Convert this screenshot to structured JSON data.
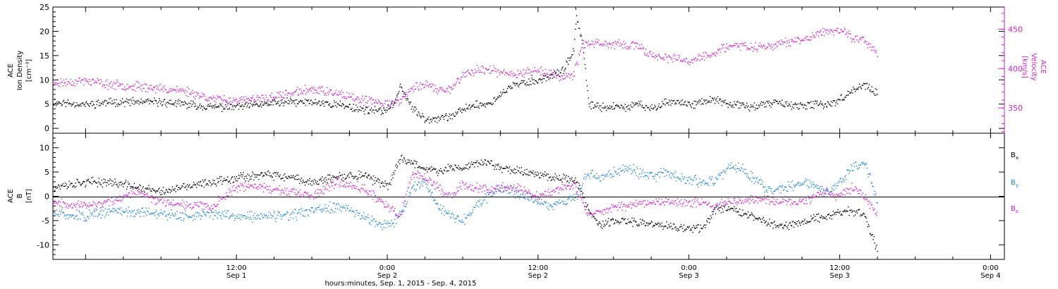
{
  "xaxis": {
    "title": "hours:minutes, Sep.  1, 2015 - Sep.  4, 2015",
    "ticks": [
      {
        "t": 12,
        "time": "12:00",
        "date": "Sep 1"
      },
      {
        "t": 24,
        "time": "0:00",
        "date": "Sep 2"
      },
      {
        "t": 36,
        "time": "12:00",
        "date": "Sep 2"
      },
      {
        "t": 48,
        "time": "0:00",
        "date": "Sep 3"
      },
      {
        "t": 60,
        "time": "12:00",
        "date": "Sep 3"
      },
      {
        "t": 72,
        "time": "0:00",
        "date": "Sep 4"
      }
    ]
  },
  "panel1": {
    "ylabel_left": [
      "ACE",
      "Ion Density",
      "[cm⁻³]"
    ],
    "ylabel_right": [
      "ACE",
      "Velocity",
      "[km/s]"
    ],
    "left_ticks": [
      "0",
      "5",
      "10",
      "15",
      "20",
      "25"
    ],
    "right_ticks": [
      "350",
      "400",
      "450"
    ]
  },
  "panel2": {
    "ylabel_left": [
      "ACE",
      "B",
      "[nT]"
    ],
    "left_ticks": [
      "-10",
      "-5",
      "0",
      "5",
      "10"
    ],
    "legend": [
      {
        "label": "B",
        "sub": "x",
        "color": "#000000"
      },
      {
        "label": "B",
        "sub": "y",
        "color": "#1f86d8"
      },
      {
        "label": "B",
        "sub": "z",
        "color": "#d41fd4"
      }
    ]
  },
  "colors": {
    "density": "#000000",
    "velocity": "#cc22cc",
    "bx": "#000000",
    "by": "#1f86d8",
    "bz": "#d41fd4"
  },
  "chart_data": [
    {
      "type": "scatter",
      "x_unit": "hours since Sep 1 2015 00:00",
      "xlim": [
        -2.6,
        73.1
      ],
      "series": [
        {
          "name": "Ion Density",
          "axis": "left",
          "ylim": [
            -1,
            25
          ],
          "data_range": [
            -2.6,
            63
          ],
          "points": [
            [
              -2.6,
              5.5
            ],
            [
              0,
              5
            ],
            [
              2,
              5.5
            ],
            [
              4,
              5.5
            ],
            [
              6,
              5.5
            ],
            [
              8,
              5
            ],
            [
              10,
              4.5
            ],
            [
              12,
              4.5
            ],
            [
              14,
              5
            ],
            [
              16,
              5.5
            ],
            [
              18,
              5.5
            ],
            [
              20,
              5
            ],
            [
              22,
              4
            ],
            [
              23.5,
              3.5
            ],
            [
              24.5,
              5
            ],
            [
              25,
              9
            ],
            [
              26,
              4
            ],
            [
              27,
              2
            ],
            [
              29,
              2.5
            ],
            [
              30,
              4
            ],
            [
              31,
              5
            ],
            [
              32,
              5
            ],
            [
              33,
              7
            ],
            [
              34,
              9
            ],
            [
              35,
              9.5
            ],
            [
              36,
              10
            ],
            [
              37,
              11
            ],
            [
              38,
              12
            ],
            [
              38.8,
              16
            ],
            [
              39,
              23
            ],
            [
              39.5,
              18
            ],
            [
              40,
              5
            ],
            [
              41,
              4.5
            ],
            [
              43,
              4.5
            ],
            [
              44,
              5
            ],
            [
              45,
              4
            ],
            [
              46,
              5.5
            ],
            [
              47,
              5.5
            ],
            [
              48,
              5
            ],
            [
              49,
              5.5
            ],
            [
              50,
              6
            ],
            [
              51,
              5
            ],
            [
              52,
              5
            ],
            [
              53,
              4.5
            ],
            [
              54,
              5
            ],
            [
              55,
              5.5
            ],
            [
              56,
              5
            ],
            [
              57,
              4.5
            ],
            [
              58,
              5
            ],
            [
              59,
              5
            ],
            [
              60,
              6
            ],
            [
              61,
              8
            ],
            [
              62,
              9
            ],
            [
              63,
              7
            ]
          ]
        },
        {
          "name": "Velocity",
          "axis": "right",
          "ylim": [
            318,
            478
          ],
          "data_range": [
            -2.6,
            63
          ],
          "points": [
            [
              -2.6,
              382
            ],
            [
              0,
              385
            ],
            [
              2,
              380
            ],
            [
              4,
              378
            ],
            [
              6,
              375
            ],
            [
              8,
              372
            ],
            [
              10,
              362
            ],
            [
              12,
              360
            ],
            [
              14,
              362
            ],
            [
              16,
              368
            ],
            [
              18,
              375
            ],
            [
              20,
              368
            ],
            [
              22,
              360
            ],
            [
              24,
              356
            ],
            [
              25,
              360
            ],
            [
              26,
              375
            ],
            [
              27,
              382
            ],
            [
              28,
              372
            ],
            [
              29,
              375
            ],
            [
              30,
              392
            ],
            [
              31,
              398
            ],
            [
              32,
              400
            ],
            [
              33,
              395
            ],
            [
              34,
              393
            ],
            [
              35,
              397
            ],
            [
              36,
              398
            ],
            [
              37,
              393
            ],
            [
              38,
              390
            ],
            [
              38.8,
              393
            ],
            [
              39.5,
              432
            ],
            [
              40,
              432
            ],
            [
              41,
              431
            ],
            [
              42,
              432
            ],
            [
              43,
              430
            ],
            [
              44,
              428
            ],
            [
              45,
              418
            ],
            [
              46,
              415
            ],
            [
              47,
              412
            ],
            [
              48,
              410
            ],
            [
              49,
              416
            ],
            [
              50,
              420
            ],
            [
              51,
              428
            ],
            [
              52,
              430
            ],
            [
              53,
              428
            ],
            [
              54,
              428
            ],
            [
              55,
              432
            ],
            [
              56,
              435
            ],
            [
              57,
              436
            ],
            [
              58,
              443
            ],
            [
              59,
              448
            ],
            [
              60,
              450
            ],
            [
              61,
              440
            ],
            [
              62,
              435
            ],
            [
              63,
              420
            ]
          ]
        }
      ]
    },
    {
      "type": "scatter",
      "x_unit": "hours since Sep 1 2015 00:00",
      "xlim": [
        -2.6,
        73.1
      ],
      "ylim": [
        -13,
        13
      ],
      "series": [
        {
          "name": "Bx",
          "data_range": [
            -2.6,
            63
          ],
          "points": [
            [
              -2.6,
              2
            ],
            [
              0,
              3
            ],
            [
              2,
              3
            ],
            [
              4,
              2
            ],
            [
              6,
              1
            ],
            [
              8,
              2
            ],
            [
              10,
              3
            ],
            [
              12,
              4
            ],
            [
              14,
              4.5
            ],
            [
              16,
              4
            ],
            [
              18,
              3
            ],
            [
              20,
              4
            ],
            [
              22,
              4.5
            ],
            [
              24,
              2
            ],
            [
              25,
              8
            ],
            [
              26,
              7
            ],
            [
              27,
              6
            ],
            [
              28,
              5
            ],
            [
              29,
              6
            ],
            [
              30,
              6
            ],
            [
              31,
              7
            ],
            [
              32,
              7
            ],
            [
              33,
              6
            ],
            [
              34,
              5.5
            ],
            [
              35,
              5
            ],
            [
              36,
              5
            ],
            [
              37,
              4
            ],
            [
              38,
              4
            ],
            [
              39,
              3.5
            ],
            [
              40,
              -3
            ],
            [
              41,
              -6
            ],
            [
              42,
              -5
            ],
            [
              43,
              -5
            ],
            [
              44,
              -5.5
            ],
            [
              45,
              -5.5
            ],
            [
              46,
              -6
            ],
            [
              47,
              -6.5
            ],
            [
              48,
              -6.5
            ],
            [
              49,
              -6.5
            ],
            [
              50,
              -3
            ],
            [
              51,
              -2
            ],
            [
              52,
              -3
            ],
            [
              53,
              -4
            ],
            [
              54,
              -5
            ],
            [
              55,
              -6
            ],
            [
              56,
              -6
            ],
            [
              57,
              -5
            ],
            [
              58,
              -4.5
            ],
            [
              59,
              -4
            ],
            [
              60,
              -3
            ],
            [
              61,
              -3
            ],
            [
              62,
              -4
            ],
            [
              63,
              -11.5
            ]
          ]
        },
        {
          "name": "By",
          "data_range": [
            -2.6,
            63
          ],
          "points": [
            [
              -2.6,
              -3.5
            ],
            [
              0,
              -4
            ],
            [
              2,
              -3
            ],
            [
              4,
              -3
            ],
            [
              6,
              -3.5
            ],
            [
              8,
              -4
            ],
            [
              10,
              -3.5
            ],
            [
              12,
              -4
            ],
            [
              14,
              -4
            ],
            [
              16,
              -4
            ],
            [
              18,
              -3
            ],
            [
              20,
              -2
            ],
            [
              22,
              -4
            ],
            [
              24,
              -6
            ],
            [
              25,
              -4
            ],
            [
              26,
              2
            ],
            [
              27,
              3
            ],
            [
              28,
              -2
            ],
            [
              29,
              -4
            ],
            [
              30,
              -5
            ],
            [
              31,
              -2
            ],
            [
              32,
              0
            ],
            [
              33,
              2
            ],
            [
              34,
              1
            ],
            [
              35,
              0
            ],
            [
              36,
              -1
            ],
            [
              37,
              -2
            ],
            [
              38,
              -1
            ],
            [
              39,
              0
            ],
            [
              40,
              5
            ],
            [
              41,
              4
            ],
            [
              42,
              5
            ],
            [
              43,
              6
            ],
            [
              44,
              5
            ],
            [
              45,
              4
            ],
            [
              46,
              5
            ],
            [
              47,
              4
            ],
            [
              48,
              3.5
            ],
            [
              49,
              3
            ],
            [
              50,
              3
            ],
            [
              51,
              6
            ],
            [
              52,
              6
            ],
            [
              53,
              4
            ],
            [
              54,
              2
            ],
            [
              55,
              1
            ],
            [
              56,
              2
            ],
            [
              57,
              3
            ],
            [
              58,
              2
            ],
            [
              59,
              1
            ],
            [
              60,
              3
            ],
            [
              61,
              6
            ],
            [
              62,
              7
            ],
            [
              63,
              -1
            ]
          ]
        },
        {
          "name": "Bz",
          "data_range": [
            -2.6,
            63
          ],
          "points": [
            [
              -2.6,
              -1
            ],
            [
              0,
              -2
            ],
            [
              2,
              -1
            ],
            [
              4,
              1
            ],
            [
              6,
              -1
            ],
            [
              8,
              -1.5
            ],
            [
              10,
              -2
            ],
            [
              12,
              2
            ],
            [
              14,
              2
            ],
            [
              16,
              1
            ],
            [
              18,
              0
            ],
            [
              20,
              3
            ],
            [
              22,
              2
            ],
            [
              24,
              -2
            ],
            [
              25,
              -4
            ],
            [
              26,
              5
            ],
            [
              27,
              4
            ],
            [
              28,
              2
            ],
            [
              29,
              0
            ],
            [
              30,
              2.5
            ],
            [
              31,
              2
            ],
            [
              32,
              1.5
            ],
            [
              33,
              2
            ],
            [
              34,
              2
            ],
            [
              35,
              1
            ],
            [
              36,
              0
            ],
            [
              37,
              1
            ],
            [
              38,
              2
            ],
            [
              39,
              2
            ],
            [
              40,
              -4
            ],
            [
              41,
              -3
            ],
            [
              42,
              -2
            ],
            [
              43,
              -2
            ],
            [
              44,
              -1.5
            ],
            [
              45,
              -1
            ],
            [
              46,
              -1
            ],
            [
              47,
              -1
            ],
            [
              48,
              -1.5
            ],
            [
              49,
              -1
            ],
            [
              50,
              -2
            ],
            [
              51,
              -1
            ],
            [
              52,
              -1
            ],
            [
              53,
              -0.5
            ],
            [
              54,
              -0.5
            ],
            [
              55,
              -1
            ],
            [
              56,
              -1
            ],
            [
              57,
              -1
            ],
            [
              58,
              0
            ],
            [
              59,
              1
            ],
            [
              60,
              0
            ],
            [
              61,
              2
            ],
            [
              62,
              0
            ],
            [
              63,
              -4
            ]
          ]
        }
      ]
    }
  ]
}
